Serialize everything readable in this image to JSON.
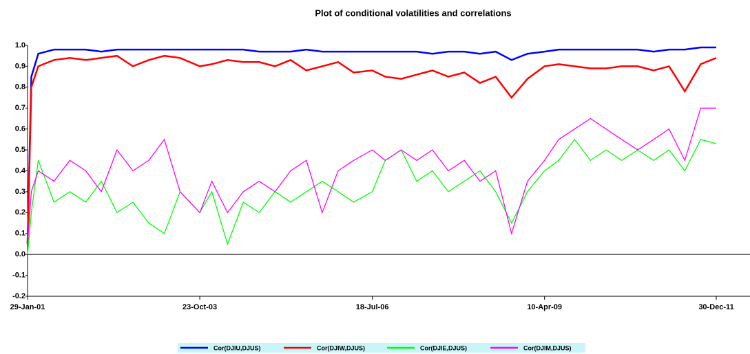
{
  "chart_data": {
    "type": "line",
    "title": "Plot of conditional volatilities and correlations",
    "x": [
      "2001-01-29",
      "2001-02-20",
      "2001-04-01",
      "2001-07-01",
      "2001-10-01",
      "2002-01-01",
      "2002-04-01",
      "2002-07-01",
      "2002-10-01",
      "2003-01-01",
      "2003-04-01",
      "2003-07-01",
      "2003-10-23",
      "2004-01-01",
      "2004-04-01",
      "2004-07-01",
      "2004-10-01",
      "2005-01-01",
      "2005-04-01",
      "2005-07-01",
      "2005-10-01",
      "2006-01-01",
      "2006-04-01",
      "2006-07-18",
      "2006-10-01",
      "2007-01-01",
      "2007-04-01",
      "2007-07-01",
      "2007-10-01",
      "2008-01-01",
      "2008-04-01",
      "2008-07-01",
      "2008-10-01",
      "2009-01-01",
      "2009-04-10",
      "2009-07-01",
      "2009-10-01",
      "2010-01-01",
      "2010-04-01",
      "2010-07-01",
      "2010-10-01",
      "2011-01-01",
      "2011-04-01",
      "2011-07-01",
      "2011-10-01",
      "2011-12-30"
    ],
    "xlim": [
      "2001-01-29",
      "2011-12-30"
    ],
    "xticks": [
      {
        "value": "2001-01-29",
        "label": "29-Jan-01"
      },
      {
        "value": "2003-10-23",
        "label": "23-Oct-03"
      },
      {
        "value": "2006-07-18",
        "label": "18-Jul-06"
      },
      {
        "value": "2009-04-10",
        "label": "10-Apr-09"
      },
      {
        "value": "2011-12-30",
        "label": "30-Dec-11"
      }
    ],
    "ylim": [
      -0.2,
      1.0
    ],
    "yticks": [
      {
        "value": 1,
        "label": "1.0"
      },
      0.9,
      0.8,
      0.7,
      0.6,
      0.5,
      0.4,
      0.3,
      0.2,
      0.1,
      {
        "value": 0,
        "label": "0.0"
      },
      -0.1,
      -0.2
    ],
    "series": [
      {
        "name": "Cor(DJIU,DJUS)",
        "color": "#0000ff",
        "values": [
          0.05,
          0.85,
          0.96,
          0.98,
          0.98,
          0.98,
          0.97,
          0.98,
          0.98,
          0.98,
          0.98,
          0.98,
          0.98,
          0.98,
          0.98,
          0.98,
          0.97,
          0.97,
          0.97,
          0.98,
          0.97,
          0.97,
          0.97,
          0.97,
          0.97,
          0.97,
          0.97,
          0.96,
          0.97,
          0.97,
          0.96,
          0.97,
          0.93,
          0.96,
          0.97,
          0.98,
          0.98,
          0.98,
          0.98,
          0.98,
          0.98,
          0.97,
          0.98,
          0.98,
          0.99,
          0.99
        ]
      },
      {
        "name": "Cor(DJIW,DJUS)",
        "color": "#ff0000",
        "values": [
          0.05,
          0.8,
          0.9,
          0.93,
          0.94,
          0.93,
          0.94,
          0.95,
          0.9,
          0.93,
          0.95,
          0.94,
          0.9,
          0.91,
          0.93,
          0.92,
          0.92,
          0.9,
          0.93,
          0.88,
          0.9,
          0.92,
          0.87,
          0.88,
          0.85,
          0.84,
          0.86,
          0.88,
          0.85,
          0.87,
          0.82,
          0.85,
          0.75,
          0.84,
          0.9,
          0.91,
          0.9,
          0.89,
          0.89,
          0.9,
          0.9,
          0.88,
          0.9,
          0.78,
          0.91,
          0.94
        ]
      },
      {
        "name": "Cor(DJIE,DJUS)",
        "color": "#00ff00",
        "values": [
          0.0,
          0.2,
          0.45,
          0.25,
          0.3,
          0.25,
          0.35,
          0.2,
          0.25,
          0.15,
          0.1,
          0.3,
          0.2,
          0.3,
          0.05,
          0.25,
          0.2,
          0.3,
          0.25,
          0.3,
          0.35,
          0.3,
          0.25,
          0.3,
          0.45,
          0.5,
          0.35,
          0.4,
          0.3,
          0.35,
          0.4,
          0.3,
          0.15,
          0.3,
          0.4,
          0.45,
          0.55,
          0.45,
          0.5,
          0.45,
          0.5,
          0.45,
          0.5,
          0.4,
          0.55,
          0.53
        ]
      },
      {
        "name": "Cor(DJIM,DJUS)",
        "color": "#ff00ff",
        "values": [
          0.05,
          0.3,
          0.4,
          0.35,
          0.45,
          0.4,
          0.3,
          0.5,
          0.4,
          0.45,
          0.55,
          0.3,
          0.2,
          0.35,
          0.2,
          0.3,
          0.35,
          0.3,
          0.4,
          0.45,
          0.2,
          0.4,
          0.45,
          0.5,
          0.45,
          0.5,
          0.45,
          0.5,
          0.4,
          0.45,
          0.35,
          0.4,
          0.1,
          0.35,
          0.45,
          0.55,
          0.6,
          0.65,
          0.6,
          0.55,
          0.5,
          0.55,
          0.6,
          0.45,
          0.7,
          0.7
        ]
      }
    ]
  }
}
